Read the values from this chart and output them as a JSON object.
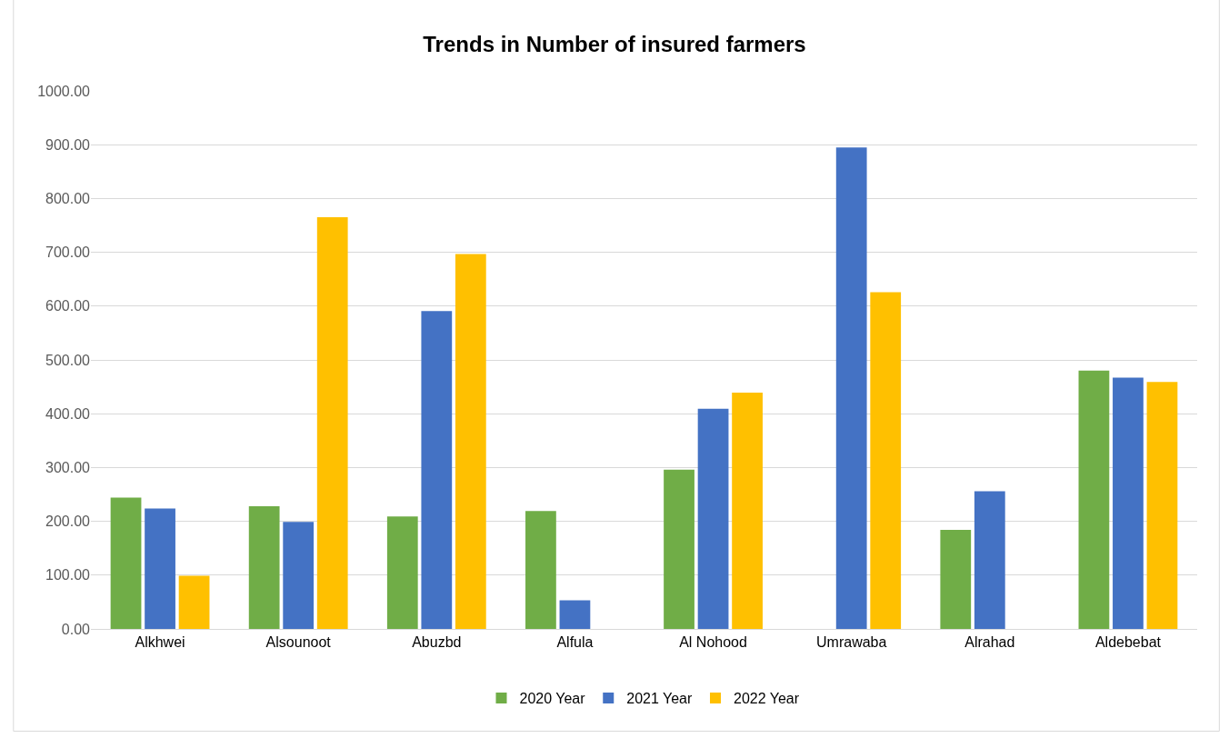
{
  "chart_data": {
    "type": "bar",
    "title": "Trends in Number of insured farmers",
    "categories": [
      "Alkhwei",
      "Alsounoot",
      "Abuzbd",
      "Alfula",
      "Al Nohood",
      "Umrawaba",
      "Alrahad",
      "Aldebebat"
    ],
    "series": [
      {
        "name": "2020 Year",
        "color": "#70ad47",
        "values": [
          244,
          228,
          209,
          219,
          296,
          null,
          184,
          480
        ]
      },
      {
        "name": "2021 Year",
        "color": "#4472c4",
        "values": [
          224,
          199,
          591,
          53,
          409,
          895,
          256,
          467
        ]
      },
      {
        "name": "2022 Year",
        "color": "#ffc000",
        "values": [
          99,
          765,
          697,
          null,
          439,
          626,
          null,
          459
        ]
      }
    ],
    "ylim": [
      0,
      1000
    ],
    "yticks": [
      {
        "value": 0,
        "label": "0.00"
      },
      {
        "value": 100,
        "label": "100.00"
      },
      {
        "value": 200,
        "label": "200.00"
      },
      {
        "value": 300,
        "label": "300.00"
      },
      {
        "value": 400,
        "label": "400.00"
      },
      {
        "value": 500,
        "label": "500.00"
      },
      {
        "value": 600,
        "label": "600.00"
      },
      {
        "value": 700,
        "label": "700.00"
      },
      {
        "value": 800,
        "label": "800.00"
      },
      {
        "value": 900,
        "label": "900.00"
      },
      {
        "value": 1000,
        "label": "1000.00"
      }
    ],
    "grid": "y",
    "legend": "bottom"
  }
}
